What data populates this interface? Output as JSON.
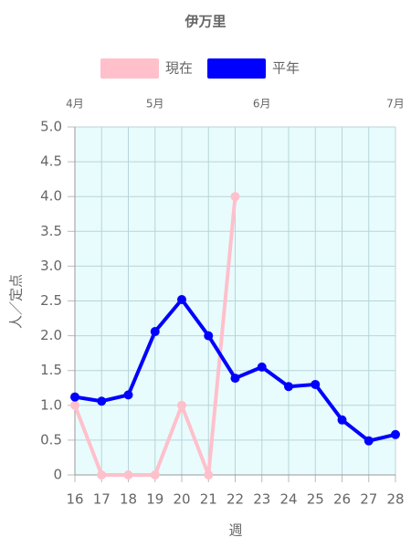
{
  "chart_data": {
    "type": "line",
    "title": "伊万里",
    "x": [
      16,
      17,
      18,
      19,
      20,
      21,
      22,
      23,
      24,
      25,
      26,
      27,
      28
    ],
    "xlim": [
      16,
      28
    ],
    "xticks": [
      16,
      17,
      18,
      19,
      20,
      21,
      22,
      23,
      24,
      25,
      26,
      27,
      28
    ],
    "xlabel": "週",
    "ylabel": "人／定点",
    "ylim": [
      0,
      5
    ],
    "yticks": [
      0,
      0.5,
      {
        "value": 1,
        "label": "1.0"
      },
      1.5,
      {
        "value": 2,
        "label": "2.0"
      },
      2.5,
      {
        "value": 3,
        "label": "3.0"
      },
      3.5,
      {
        "value": 4,
        "label": "4.0"
      },
      4.5,
      {
        "value": 5,
        "label": "5.0"
      }
    ],
    "top_axis": {
      "labels": [
        "4月",
        "5月",
        "6月",
        "7月"
      ],
      "positions": [
        16,
        19,
        23,
        28
      ]
    },
    "grid": true,
    "plot_background": "#e8fcfd",
    "series": [
      {
        "name": "現在",
        "color": "#ffc0cb",
        "values": [
          1.0,
          0,
          0,
          0,
          1.0,
          0,
          4.0,
          null,
          null,
          null,
          null,
          null,
          null
        ]
      },
      {
        "name": "平年",
        "color": "#0000ff",
        "values": [
          1.12,
          1.06,
          1.15,
          2.06,
          2.52,
          2.0,
          1.39,
          1.55,
          1.27,
          1.3,
          0.79,
          0.49,
          0.58
        ]
      }
    ]
  }
}
